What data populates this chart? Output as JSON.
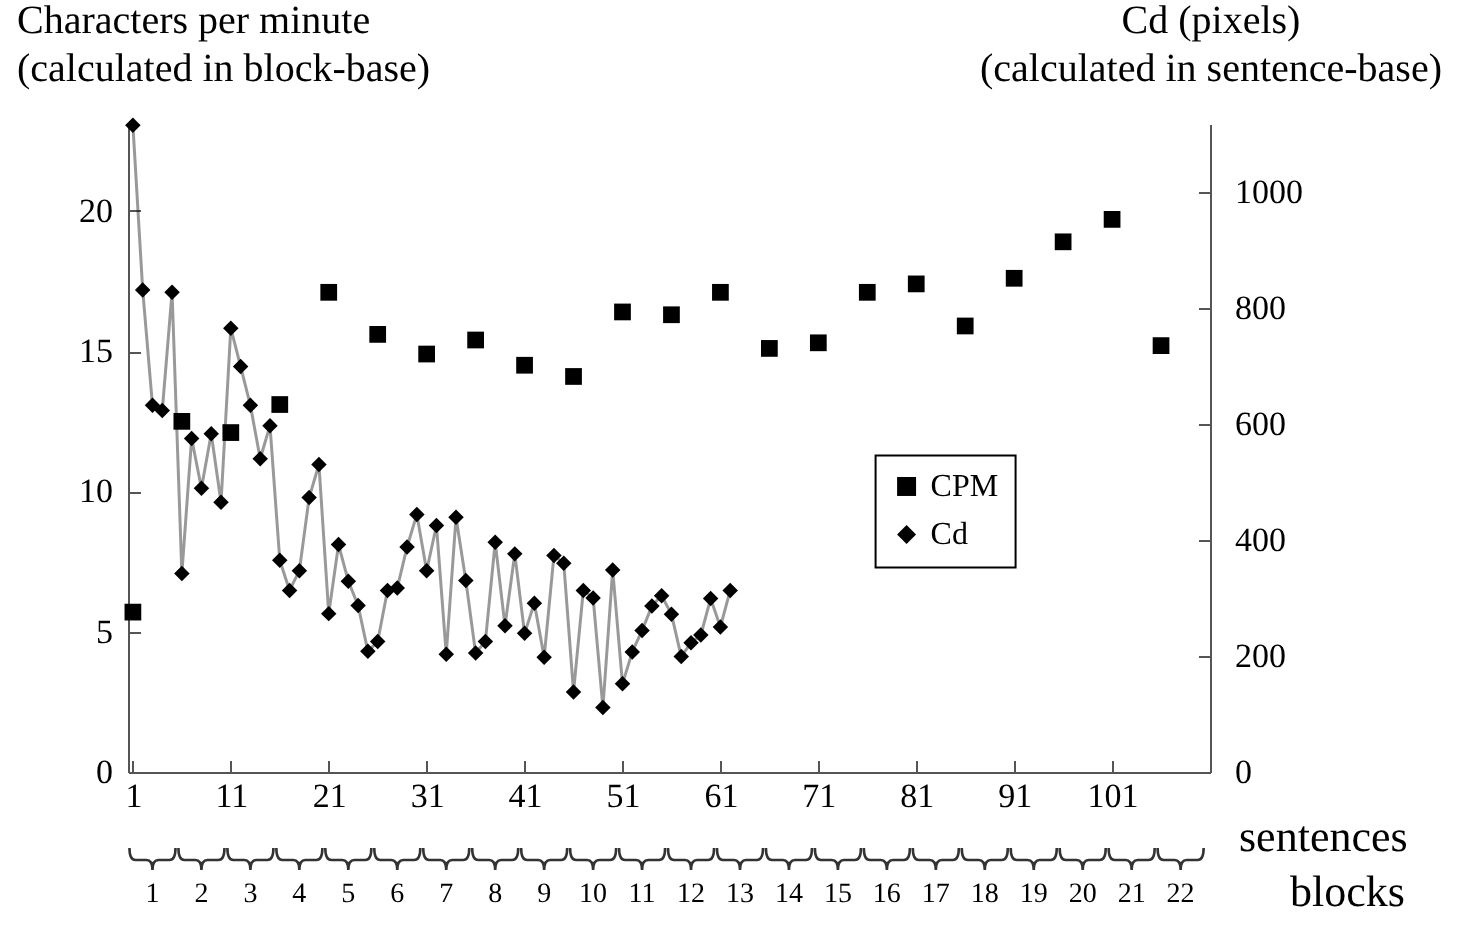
{
  "chart_data": {
    "type": "scatter",
    "ylabel": "Characters per minute\n(calculated in block-base)",
    "y2label": "Cd (pixels)\n(calculated in sentence-base)",
    "xlabel": "sentences",
    "x2label": "blocks",
    "xlim": [
      0.5,
      111
    ],
    "xticks": [
      1,
      11,
      21,
      31,
      41,
      51,
      61,
      71,
      81,
      91,
      101
    ],
    "x2lim": [
      0.5,
      22.6
    ],
    "x2ticks": [
      1,
      2,
      3,
      4,
      5,
      6,
      7,
      8,
      9,
      10,
      11,
      12,
      13,
      14,
      15,
      16,
      17,
      18,
      19,
      20,
      21,
      22
    ],
    "ylim": [
      0,
      23.1
    ],
    "yticks": [
      0,
      5,
      10,
      15,
      20
    ],
    "y2lim": [
      0,
      1117
    ],
    "y2ticks": [
      0,
      200,
      400,
      600,
      800,
      1000
    ],
    "grid": false,
    "legend": "right",
    "series": [
      {
        "name": "CPM",
        "type": "scatter",
        "marker": "square",
        "color": "#000000",
        "x": [
          1,
          6,
          11,
          16,
          21,
          26,
          31,
          36,
          41,
          46,
          51,
          56,
          61,
          66,
          71,
          76,
          81,
          86,
          91,
          96,
          101,
          106
        ],
        "values": [
          5.7,
          12.5,
          12.1,
          13.1,
          17.1,
          15.6,
          14.9,
          15.4,
          14.5,
          14.1,
          16.4,
          16.3,
          17.1,
          15.1,
          15.3,
          17.1,
          17.4,
          15.9,
          17.6,
          18.9,
          19.7,
          15.2
        ]
      },
      {
        "name": "Cd",
        "type": "line",
        "marker": "diamond",
        "axis": "y2",
        "color": "#000000",
        "x": [
          1,
          2,
          3,
          4,
          5,
          6,
          7,
          8,
          9,
          10,
          11,
          12,
          13,
          14,
          15,
          16,
          17,
          18,
          19,
          20,
          21,
          22,
          23,
          24,
          25,
          26,
          27,
          28,
          29,
          30,
          31,
          32,
          33,
          34,
          35,
          36,
          37,
          38,
          39,
          40,
          41,
          42,
          43,
          44,
          45,
          46,
          47,
          48,
          49,
          50,
          51,
          52,
          53,
          54,
          55,
          56,
          57,
          58,
          59,
          60,
          61,
          62
        ],
        "values": [
          1115,
          831,
          632,
          623,
          827,
          342,
          575,
          489,
          583,
          465,
          765,
          699,
          632,
          540,
          597,
          365,
          313,
          347,
          473,
          530,
          273,
          392,
          329,
          287,
          208,
          225,
          313,
          317,
          388,
          444,
          347,
          425,
          203,
          439,
          330,
          205,
          225,
          396,
          252,
          376,
          239,
          291,
          198,
          373,
          360,
          138,
          313,
          300,
          111,
          348,
          152,
          207,
          244,
          286,
          304,
          272,
          199,
          223,
          236,
          299,
          250,
          313
        ]
      }
    ]
  }
}
